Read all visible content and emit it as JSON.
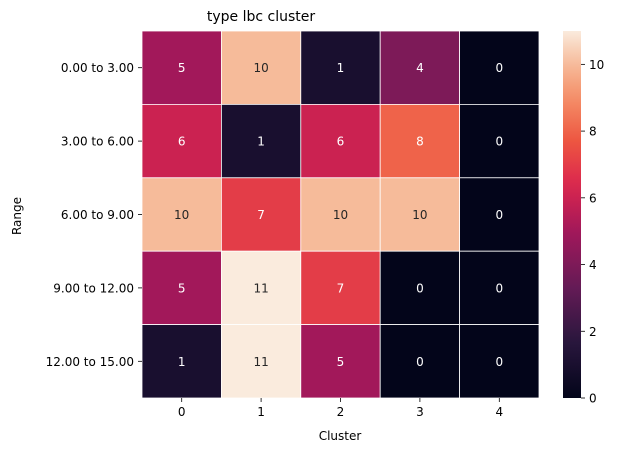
{
  "chart_data": {
    "type": "heatmap",
    "title": "type lbc cluster",
    "xlabel": "Cluster",
    "ylabel": "Range",
    "x_categories": [
      "0",
      "1",
      "2",
      "3",
      "4"
    ],
    "y_categories": [
      "0.00 to 3.00",
      "3.00 to 6.00",
      "6.00 to 9.00",
      "9.00 to 12.00",
      "12.00 to 15.00"
    ],
    "values": [
      [
        5,
        10,
        1,
        4,
        0
      ],
      [
        6,
        1,
        6,
        8,
        0
      ],
      [
        10,
        7,
        10,
        10,
        0
      ],
      [
        5,
        11,
        7,
        0,
        0
      ],
      [
        1,
        11,
        5,
        0,
        0
      ]
    ],
    "colorbar": {
      "min": 0,
      "max": 11,
      "ticks": [
        "0",
        "2",
        "4",
        "6",
        "8",
        "10"
      ]
    },
    "colormap": "rocket",
    "annotations": true,
    "legend": "colorbar-right"
  }
}
